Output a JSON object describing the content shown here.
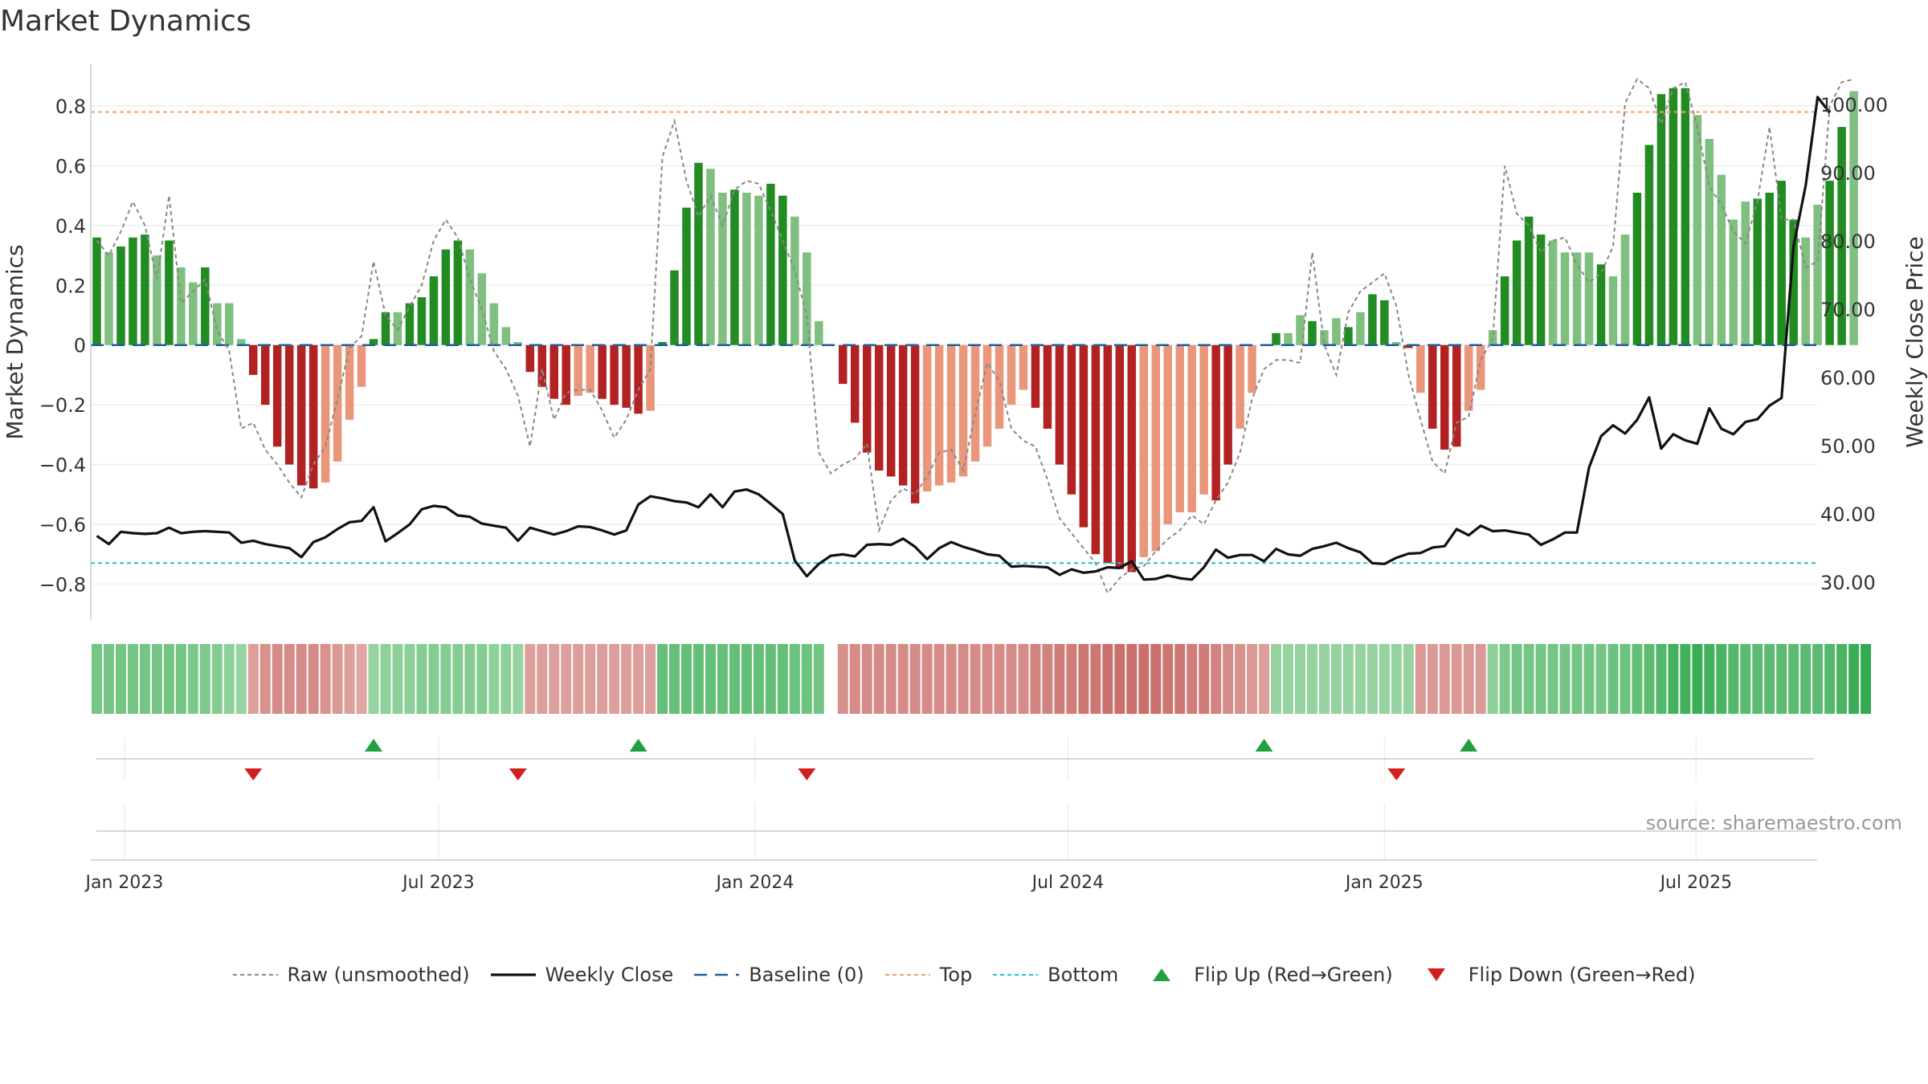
{
  "title": "Market Dynamics",
  "source_text": "source: sharemaestro.com",
  "colors": {
    "pos_strong": "#228b22",
    "pos_weak": "#7fbf7f",
    "neg_strong": "#b22222",
    "neg_weak": "#e9967a",
    "raw": "#888888",
    "close": "#111111",
    "baseline": "#1f5f9f",
    "top": "#f0a068",
    "bottom": "#20c0c8",
    "flip_up": "#22a040",
    "flip_down": "#d02020"
  },
  "legend": [
    {
      "key": "raw",
      "label": "Raw (unsmoothed)"
    },
    {
      "key": "close",
      "label": "Weekly Close"
    },
    {
      "key": "baseline",
      "label": "Baseline (0)"
    },
    {
      "key": "top",
      "label": "Top"
    },
    {
      "key": "bottom",
      "label": "Bottom"
    },
    {
      "key": "flip_up",
      "label": "Flip Up (Red→Green)"
    },
    {
      "key": "flip_down",
      "label": "Flip Down (Green→Red)"
    }
  ],
  "chart_data": {
    "type": "bar",
    "title": "Market Dynamics",
    "ylabel": "Market Dynamics",
    "y2label": "Weekly Close Price",
    "ylim": [
      -0.92,
      0.94
    ],
    "y2lim": [
      24.5,
      105.9
    ],
    "yticks": [
      "−0.8",
      "−0.6",
      "−0.4",
      "−0.2",
      "0",
      "0.2",
      "0.4",
      "0.6",
      "0.8"
    ],
    "ytick_values": [
      -0.8,
      -0.6,
      -0.4,
      -0.2,
      0,
      0.2,
      0.4,
      0.6,
      0.8
    ],
    "y2ticks": [
      "30.00",
      "40.00",
      "50.00",
      "60.00",
      "70.00",
      "80.00",
      "90.00",
      "100.00"
    ],
    "y2tick_values": [
      30,
      40,
      50,
      60,
      70,
      80,
      90,
      100
    ],
    "xticks": [
      "Jan 2023",
      "Jul 2023",
      "Jan 2024",
      "Jul 2024",
      "Jan 2025",
      "Jul 2025"
    ],
    "xtick_weeks": [
      2.3,
      28.4,
      54.7,
      80.7,
      107.0,
      132.9
    ],
    "top_line": 0.78,
    "bottom_line": -0.73,
    "baseline": 0,
    "bar_values": [
      0.36,
      0.31,
      0.33,
      0.36,
      0.37,
      0.3,
      0.35,
      0.26,
      0.21,
      0.26,
      0.14,
      0.14,
      0.02,
      -0.1,
      -0.2,
      -0.34,
      -0.4,
      -0.47,
      -0.48,
      -0.46,
      -0.39,
      -0.25,
      -0.14,
      0.02,
      0.11,
      0.11,
      0.14,
      0.16,
      0.23,
      0.32,
      0.35,
      0.32,
      0.24,
      0.14,
      0.06,
      0.01,
      -0.09,
      -0.14,
      -0.18,
      -0.2,
      -0.17,
      -0.16,
      -0.18,
      -0.2,
      -0.21,
      -0.23,
      -0.22,
      0.01,
      0.25,
      0.46,
      0.61,
      0.59,
      0.51,
      0.52,
      0.51,
      0.5,
      0.54,
      0.5,
      0.43,
      0.31,
      0.08,
      null,
      -0.13,
      -0.26,
      -0.36,
      -0.42,
      -0.44,
      -0.47,
      -0.53,
      -0.49,
      -0.47,
      -0.46,
      -0.44,
      -0.39,
      -0.34,
      -0.28,
      -0.2,
      -0.15,
      -0.21,
      -0.28,
      -0.4,
      -0.5,
      -0.61,
      -0.7,
      -0.73,
      -0.75,
      -0.76,
      -0.71,
      -0.69,
      -0.6,
      -0.56,
      -0.56,
      -0.5,
      -0.52,
      -0.4,
      -0.28,
      -0.16,
      0.0,
      0.04,
      0.04,
      0.1,
      0.08,
      0.05,
      0.09,
      0.06,
      0.11,
      0.17,
      0.15,
      0.01,
      -0.01,
      -0.16,
      -0.28,
      -0.35,
      -0.34,
      -0.22,
      -0.15,
      0.05,
      0.23,
      0.35,
      0.43,
      0.37,
      0.35,
      0.31,
      0.31,
      0.31,
      0.27,
      0.23,
      0.37,
      0.51,
      0.67,
      0.84,
      0.86,
      0.86,
      0.77,
      0.69,
      0.57,
      0.42,
      0.48,
      0.49,
      0.51,
      0.55,
      0.42,
      0.36,
      0.47,
      0.55,
      0.73,
      0.85
    ],
    "bar_strong": [
      1,
      0,
      1,
      1,
      1,
      0,
      1,
      0,
      0,
      1,
      0,
      0,
      0,
      1,
      1,
      1,
      1,
      1,
      1,
      0,
      0,
      0,
      0,
      1,
      1,
      0,
      1,
      1,
      1,
      1,
      1,
      0,
      0,
      0,
      0,
      0,
      1,
      1,
      1,
      1,
      0,
      0,
      1,
      1,
      1,
      1,
      0,
      1,
      1,
      1,
      1,
      0,
      0,
      1,
      0,
      0,
      1,
      1,
      0,
      0,
      0,
      0,
      1,
      1,
      1,
      1,
      1,
      1,
      1,
      0,
      0,
      0,
      0,
      0,
      0,
      0,
      0,
      0,
      1,
      1,
      1,
      1,
      1,
      1,
      1,
      1,
      1,
      0,
      0,
      0,
      0,
      0,
      0,
      1,
      1,
      0,
      0,
      0,
      1,
      0,
      0,
      1,
      0,
      0,
      1,
      0,
      1,
      1,
      0,
      1,
      0,
      1,
      1,
      1,
      0,
      0,
      0,
      1,
      1,
      1,
      1,
      0,
      0,
      0,
      0,
      1,
      0,
      0,
      1,
      1,
      1,
      1,
      1,
      0,
      0,
      0,
      0,
      0,
      1,
      1,
      1,
      1,
      0,
      0,
      1,
      1,
      0,
      1
    ],
    "raw_values": [
      0.35,
      0.3,
      0.38,
      0.48,
      0.4,
      0.22,
      0.5,
      0.14,
      0.18,
      0.22,
      0.05,
      -0.02,
      -0.28,
      -0.26,
      -0.35,
      -0.4,
      -0.46,
      -0.51,
      -0.4,
      -0.34,
      -0.18,
      -0.01,
      0.03,
      0.28,
      0.1,
      0.05,
      0.13,
      0.2,
      0.35,
      0.42,
      0.36,
      0.22,
      0.12,
      -0.02,
      -0.08,
      -0.17,
      -0.34,
      -0.08,
      -0.25,
      -0.16,
      -0.15,
      -0.15,
      -0.22,
      -0.31,
      -0.25,
      -0.15,
      -0.08,
      0.63,
      0.75,
      0.55,
      0.43,
      0.5,
      0.4,
      0.52,
      0.55,
      0.54,
      0.45,
      0.35,
      0.25,
      0.1,
      -0.36,
      -0.43,
      -0.4,
      -0.38,
      -0.33,
      -0.62,
      -0.52,
      -0.48,
      -0.5,
      -0.44,
      -0.36,
      -0.35,
      -0.42,
      -0.23,
      -0.06,
      -0.12,
      -0.28,
      -0.32,
      -0.34,
      -0.45,
      -0.58,
      -0.63,
      -0.68,
      -0.73,
      -0.83,
      -0.78,
      -0.75,
      -0.74,
      -0.69,
      -0.65,
      -0.62,
      -0.57,
      -0.6,
      -0.52,
      -0.46,
      -0.36,
      -0.18,
      -0.08,
      -0.05,
      -0.05,
      -0.06,
      0.31,
      0.0,
      -0.1,
      0.11,
      0.18,
      0.21,
      0.24,
      0.13,
      -0.1,
      -0.25,
      -0.39,
      -0.43,
      -0.26,
      -0.24,
      -0.05,
      0.02,
      0.6,
      0.44,
      0.4,
      0.31,
      0.35,
      0.36,
      0.27,
      0.21,
      0.24,
      0.33,
      0.81,
      0.89,
      0.86,
      0.74,
      0.86,
      0.88,
      0.73,
      0.53,
      0.47,
      0.38,
      0.34,
      0.48,
      0.73,
      0.42,
      0.42,
      0.26,
      0.28,
      0.8,
      0.88,
      0.89
    ],
    "close_values": [
      36.8,
      35.6,
      37.4,
      37.2,
      37.1,
      37.2,
      38.0,
      37.2,
      37.4,
      37.5,
      37.4,
      37.3,
      35.8,
      36.1,
      35.6,
      35.3,
      35.0,
      33.7,
      35.9,
      36.6,
      37.8,
      38.8,
      39.0,
      41.0,
      36.0,
      37.2,
      38.5,
      40.7,
      41.2,
      41.0,
      39.8,
      39.6,
      38.6,
      38.3,
      38.0,
      36.1,
      38.0,
      37.5,
      37.0,
      37.5,
      38.2,
      38.1,
      37.6,
      37.0,
      37.6,
      41.4,
      42.6,
      42.3,
      41.9,
      41.7,
      41.0,
      42.9,
      41.0,
      43.3,
      43.6,
      42.9,
      41.5,
      40.0,
      33.2,
      30.9,
      32.7,
      33.9,
      34.1,
      33.8,
      35.5,
      35.6,
      35.5,
      36.4,
      35.2,
      33.4,
      35.0,
      35.9,
      35.2,
      34.7,
      34.1,
      33.9,
      32.3,
      32.4,
      32.3,
      32.2,
      31.1,
      31.9,
      31.4,
      31.6,
      32.2,
      32.1,
      33.1,
      30.4,
      30.5,
      31.0,
      30.6,
      30.4,
      32.2,
      34.8,
      33.6,
      34.0,
      34.0,
      33.1,
      34.9,
      34.1,
      33.9,
      34.9,
      35.3,
      35.8,
      35.0,
      34.4,
      32.8,
      32.7,
      33.6,
      34.2,
      34.3,
      35.1,
      35.3,
      37.8,
      36.9,
      38.3,
      37.5,
      37.6,
      37.3,
      37.0,
      35.5,
      36.3,
      37.3,
      37.3,
      46.8,
      51.4,
      53.0,
      51.8,
      53.8,
      57.1,
      49.6,
      51.7,
      50.8,
      50.3,
      55.5,
      52.5,
      51.7,
      53.5,
      53.9,
      55.9,
      57.0,
      79.3,
      88.1,
      101.1,
      98.8
    ],
    "strip_values": [
      0.5,
      0.5,
      0.5,
      0.5,
      0.5,
      0.5,
      0.5,
      0.5,
      0.45,
      0.45,
      0.4,
      0.35,
      0.3,
      -0.3,
      -0.4,
      -0.45,
      -0.45,
      -0.45,
      -0.45,
      -0.4,
      -0.35,
      -0.3,
      -0.25,
      0.3,
      0.35,
      0.35,
      0.35,
      0.4,
      0.4,
      0.4,
      0.4,
      0.4,
      0.4,
      0.35,
      0.35,
      0.3,
      -0.3,
      -0.3,
      -0.3,
      -0.3,
      -0.3,
      -0.3,
      -0.3,
      -0.3,
      -0.3,
      -0.3,
      -0.3,
      0.6,
      0.6,
      0.6,
      0.6,
      0.6,
      0.6,
      0.6,
      0.6,
      0.6,
      0.6,
      0.6,
      0.55,
      0.55,
      0.5,
      null,
      -0.4,
      -0.45,
      -0.45,
      -0.45,
      -0.45,
      -0.45,
      -0.45,
      -0.45,
      -0.45,
      -0.45,
      -0.45,
      -0.45,
      -0.45,
      -0.45,
      -0.45,
      -0.45,
      -0.5,
      -0.5,
      -0.55,
      -0.55,
      -0.6,
      -0.6,
      -0.65,
      -0.65,
      -0.65,
      -0.65,
      -0.65,
      -0.6,
      -0.6,
      -0.55,
      -0.55,
      -0.5,
      -0.45,
      -0.4,
      -0.35,
      -0.3,
      0.3,
      0.3,
      0.3,
      0.3,
      0.3,
      0.3,
      0.3,
      0.3,
      0.3,
      0.3,
      0.3,
      0.3,
      -0.35,
      -0.35,
      -0.35,
      -0.35,
      -0.35,
      -0.35,
      0.35,
      0.45,
      0.5,
      0.5,
      0.5,
      0.5,
      0.5,
      0.5,
      0.5,
      0.5,
      0.55,
      0.55,
      0.6,
      0.65,
      0.7,
      0.8,
      0.8,
      0.85,
      0.8,
      0.75,
      0.7,
      0.65,
      0.65,
      0.65,
      0.65,
      0.65,
      0.65,
      0.65,
      0.7,
      0.75,
      0.85,
      0.9
    ],
    "flip_up_weeks": [
      23,
      45,
      97,
      114
    ],
    "flip_down_weeks": [
      13,
      35,
      59,
      108
    ]
  }
}
